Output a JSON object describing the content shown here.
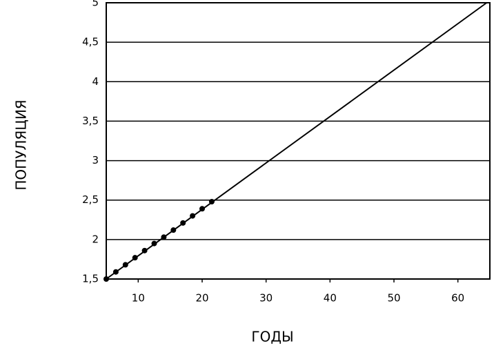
{
  "chart_data": {
    "type": "line",
    "y_label": "ПОПУЛЯЦИЯ",
    "x_label": "ГОДЫ",
    "series": [
      {
        "color": "#000000",
        "x": [
          5,
          64.5
        ],
        "values": [
          1.5,
          5
        ]
      },
      {
        "color": "#000000",
        "marker": "dot",
        "x": [
          5,
          6.5,
          8,
          9.5,
          11,
          12.5,
          14,
          15.5,
          17,
          18.5,
          20,
          21.5
        ],
        "values": [
          1.5,
          1.59,
          1.68,
          1.77,
          1.86,
          1.95,
          2.03,
          2.12,
          2.21,
          2.3,
          2.39,
          2.48
        ]
      }
    ],
    "xlim": [
      5,
      65
    ],
    "xticks": [
      10,
      20,
      30,
      40,
      50,
      60
    ],
    "ylim": [
      1.5,
      5
    ],
    "yticks": [
      {
        "value": 1.5,
        "label": "1,5"
      },
      2,
      {
        "value": 2.5,
        "label": "2,5"
      },
      3,
      {
        "value": 3.5,
        "label": "3,5"
      },
      4,
      {
        "value": 4.5,
        "label": "4,5"
      },
      5
    ],
    "grid": true
  }
}
